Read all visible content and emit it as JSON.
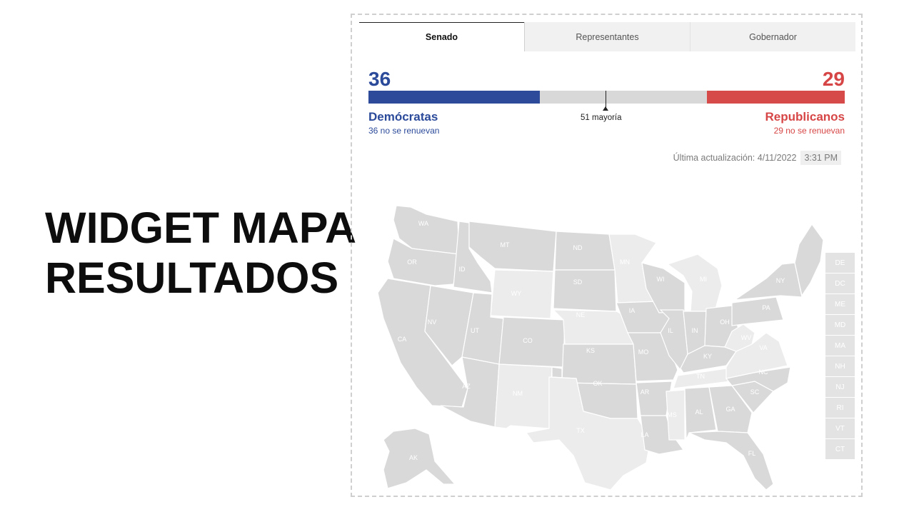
{
  "hero": {
    "line1": "WIDGET MAPA",
    "line2": "RESULTADOS"
  },
  "tabs": [
    {
      "label": "Senado",
      "active": true
    },
    {
      "label": "Representantes",
      "active": false
    },
    {
      "label": "Gobernador",
      "active": false
    }
  ],
  "results": {
    "dem_count": "36",
    "rep_count": "29",
    "dem_name": "Demócratas",
    "rep_name": "Republicanos",
    "dem_sub": "36 no se renuevan",
    "rep_sub": "29 no se renuevan",
    "majority_label": "51 mayoría",
    "total_seats": 100,
    "dem_seats": 36,
    "rep_seats": 29,
    "majority_seats": 51
  },
  "updated": {
    "label": "Última actualización: 4/11/2022",
    "time": "3:31 PM"
  },
  "map_labels": [
    "WA",
    "OR",
    "CA",
    "ID",
    "NV",
    "MT",
    "WY",
    "UT",
    "AZ",
    "CO",
    "NM",
    "ND",
    "SD",
    "NE",
    "KS",
    "OK",
    "TX",
    "MN",
    "IA",
    "MO",
    "AR",
    "LA",
    "WI",
    "IL",
    "MS",
    "MI",
    "IN",
    "TN",
    "AL",
    "OH",
    "KY",
    "GA",
    "FL",
    "WV",
    "VA",
    "NC",
    "SC",
    "PA",
    "NY",
    "AK"
  ],
  "small_states": [
    "DE",
    "DC",
    "ME",
    "MD",
    "MA",
    "NH",
    "NJ",
    "RI",
    "VT",
    "CT"
  ],
  "colors": {
    "dem": "#2c4a99",
    "rep": "#d64a4a",
    "no_race": "#d9d9d9",
    "no_race_light": "#ececec"
  }
}
